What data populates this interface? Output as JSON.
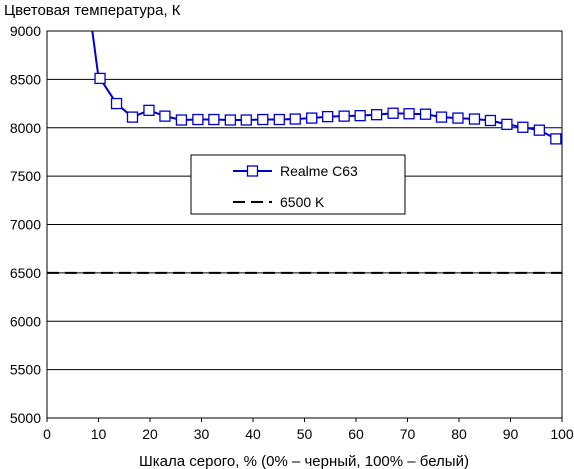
{
  "chart_data": {
    "type": "line",
    "title": "",
    "ylabel": "Цветовая температура, К",
    "xlabel": "Шкала серого, % (0% – черный, 100% – белый)",
    "xlim": [
      0,
      100
    ],
    "ylim": [
      5000,
      9000
    ],
    "xticks": [
      "0",
      "10",
      "20",
      "30",
      "40",
      "50",
      "60",
      "70",
      "80",
      "90",
      "100"
    ],
    "yticks": [
      "5000",
      "5500",
      "6000",
      "6500",
      "7000",
      "7500",
      "8000",
      "8500",
      "9000"
    ],
    "grid": "horizontal",
    "legend_position": "center",
    "series": [
      {
        "name": "Realme C63",
        "color": "#0000cc",
        "style": "solid-line-square-markers",
        "line_only_x": [
          8.8,
          10.0
        ],
        "line_only_y": [
          9000,
          8520
        ],
        "x": [
          10.3,
          13.5,
          16.6,
          19.8,
          22.9,
          26.1,
          29.3,
          32.4,
          35.6,
          38.7,
          41.9,
          45.1,
          48.2,
          51.4,
          54.5,
          57.7,
          60.8,
          64.0,
          67.2,
          70.3,
          73.5,
          76.6,
          79.8,
          83.0,
          86.1,
          89.3,
          92.4,
          95.6,
          98.8
        ],
        "y": [
          8510,
          8250,
          8110,
          8180,
          8120,
          8080,
          8085,
          8085,
          8080,
          8080,
          8085,
          8085,
          8090,
          8100,
          8115,
          8120,
          8125,
          8135,
          8150,
          8145,
          8140,
          8110,
          8100,
          8090,
          8075,
          8035,
          8005,
          7975,
          7885
        ]
      },
      {
        "name": "6500 K",
        "color": "#000000",
        "style": "dashed",
        "x": [
          0,
          100
        ],
        "y": [
          6500,
          6500
        ]
      }
    ]
  }
}
